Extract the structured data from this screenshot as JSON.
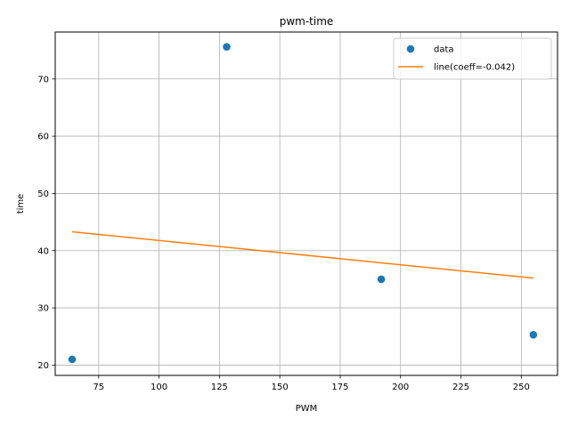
{
  "chart_data": {
    "type": "scatter",
    "title": "pwm-time",
    "xlabel": "PWM",
    "ylabel": "time",
    "xlim": [
      57,
      265
    ],
    "ylim": [
      18.2,
      78.2
    ],
    "xticks": [
      75,
      100,
      125,
      150,
      175,
      200,
      225,
      250
    ],
    "yticks": [
      20,
      30,
      40,
      50,
      60,
      70
    ],
    "grid": true,
    "legend_position": "top-right",
    "series": [
      {
        "name": "data",
        "kind": "scatter",
        "color": "#1f77b4",
        "x": [
          64,
          128,
          192,
          255
        ],
        "y": [
          21.0,
          75.6,
          35.0,
          25.3
        ]
      },
      {
        "name": "line(coeff=-0.042)",
        "kind": "line",
        "color": "#ff7f0e",
        "x": [
          64,
          255
        ],
        "y": [
          43.3,
          35.2
        ]
      }
    ]
  }
}
